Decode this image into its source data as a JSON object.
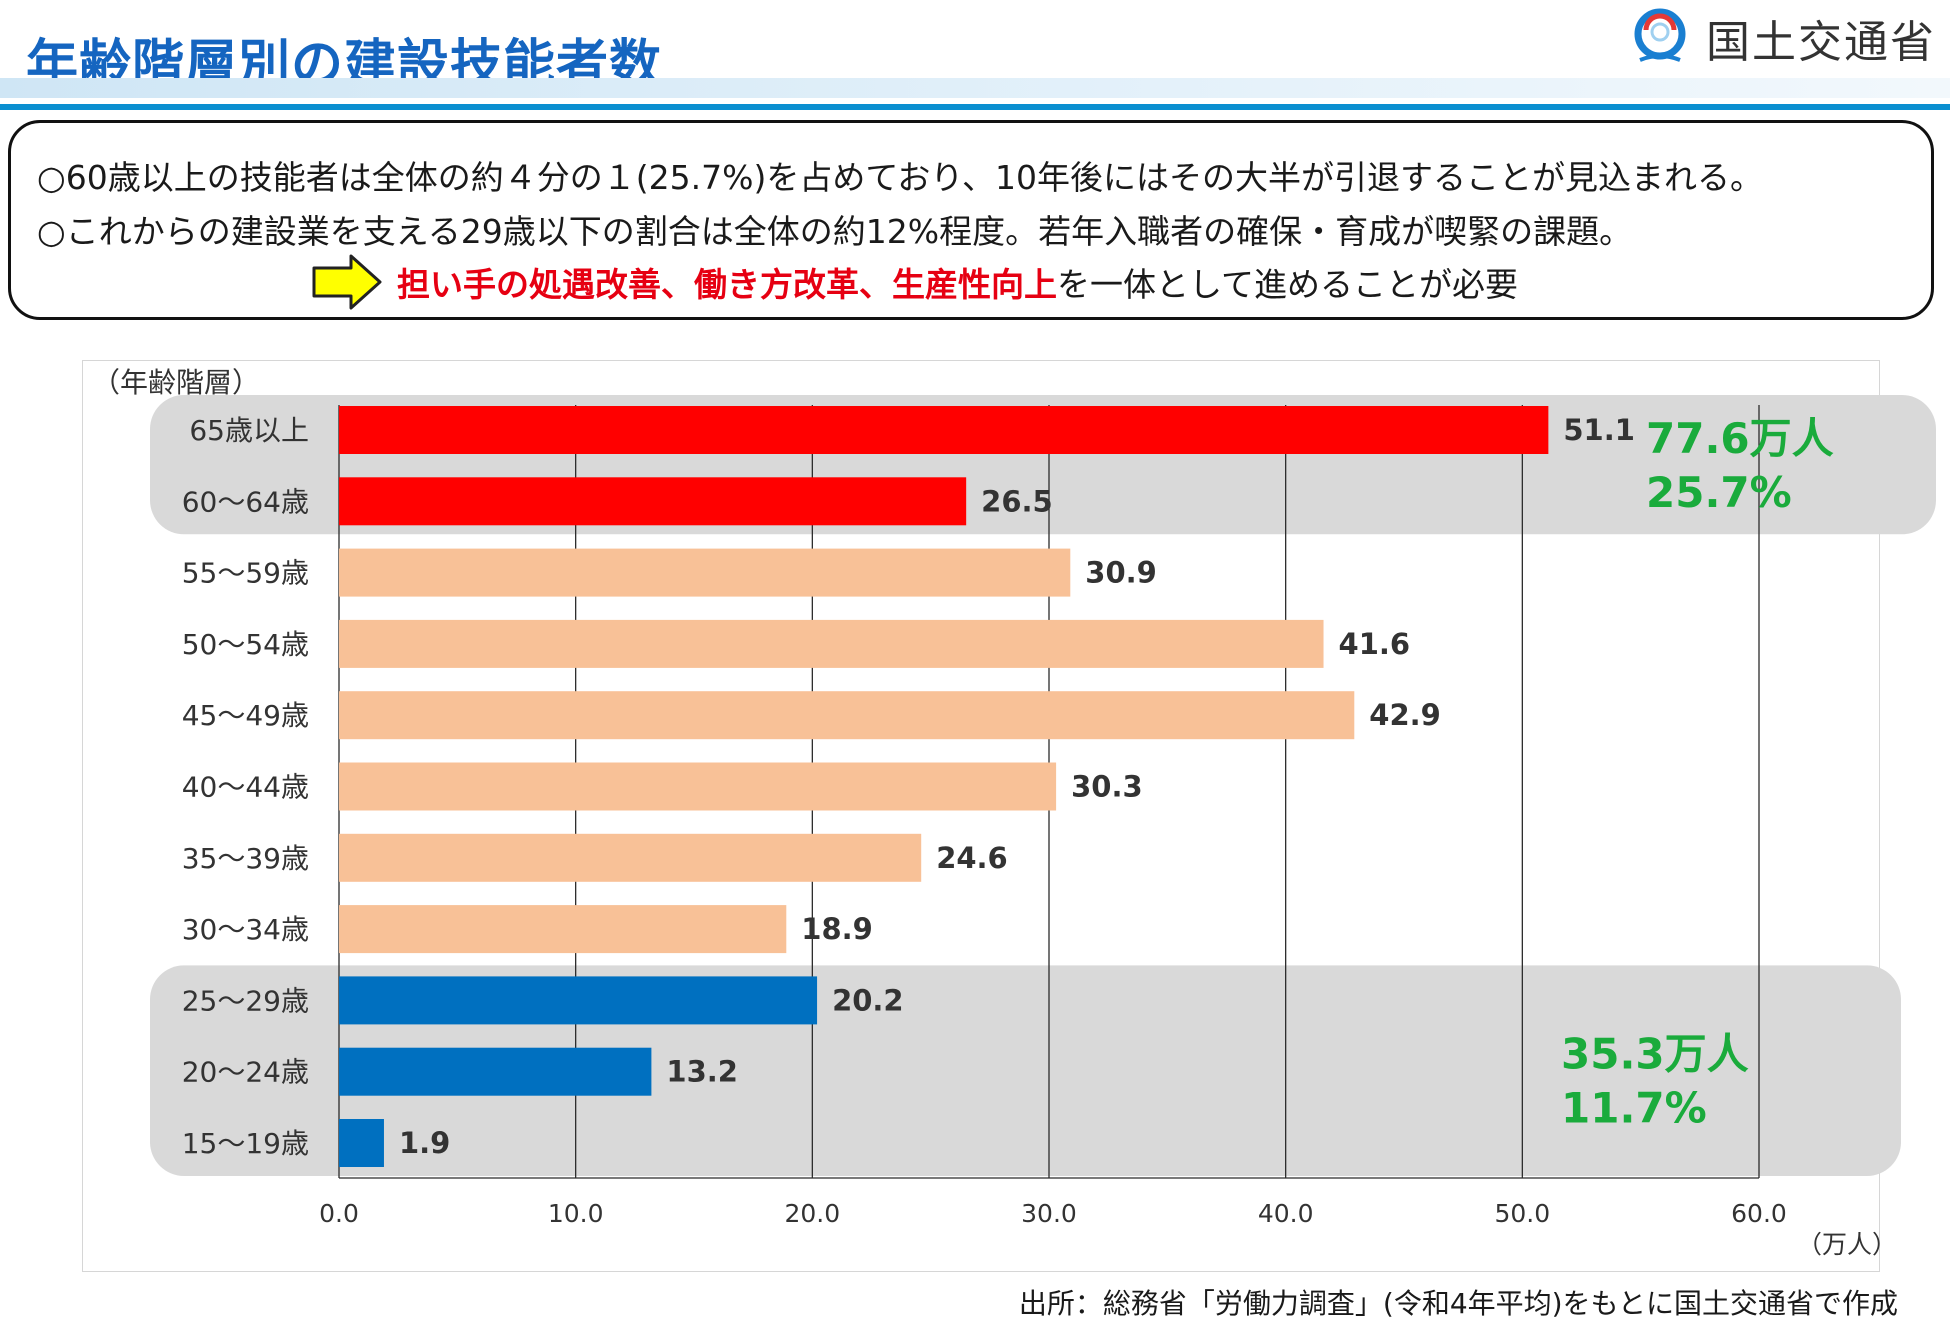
{
  "header": {
    "title": "年齢階層別の建設技能者数",
    "logo_text": "国土交通省"
  },
  "summary": {
    "line1": "○60歳以上の技能者は全体の約４分の１(25.7%)を占めており、10年後にはその大半が引退することが見込まれる。",
    "line2": "○これからの建設業を支える29歳以下の割合は全体の約12%程度。若年入職者の確保・育成が喫緊の課題。",
    "emphasis": "担い手の処遇改善、働き方改革、生産性向上",
    "line3_rest": "を一体として進めることが必要"
  },
  "source": "出所：総務省「労働力調査」(令和4年平均)をもとに国土交通省で作成",
  "colors": {
    "senior": "#ff0000",
    "middle": "#f8c197",
    "young": "#0070c0",
    "group_band": "#d9d9d9",
    "group_label": "#1aab3c",
    "title": "#1565c0"
  },
  "chart_data": {
    "type": "bar",
    "orientation": "horizontal",
    "y_axis_label": "（年齢階層）",
    "x_axis_unit": "（万人）",
    "xlim": [
      0,
      60
    ],
    "x_ticks": [
      "0.0",
      "10.0",
      "20.0",
      "30.0",
      "40.0",
      "50.0",
      "60.0"
    ],
    "grid": true,
    "categories": [
      "65歳以上",
      "60～64歳",
      "55～59歳",
      "50～54歳",
      "45～49歳",
      "40～44歳",
      "35～39歳",
      "30～34歳",
      "25～29歳",
      "20～24歳",
      "15～19歳"
    ],
    "values": [
      51.1,
      26.5,
      30.9,
      41.6,
      42.9,
      30.3,
      24.6,
      18.9,
      20.2,
      13.2,
      1.9
    ],
    "value_labels": [
      "51.1",
      "26.5",
      "30.9",
      "41.6",
      "42.9",
      "30.3",
      "24.6",
      "18.9",
      "20.2",
      "13.2",
      "1.9"
    ],
    "bar_groups": [
      "senior",
      "senior",
      "middle",
      "middle",
      "middle",
      "middle",
      "middle",
      "middle",
      "young",
      "young",
      "young"
    ],
    "groups": [
      {
        "key": "senior",
        "categories": [
          "65歳以上",
          "60～64歳"
        ],
        "total_label": "77.6万人",
        "share_label": "25.7%"
      },
      {
        "key": "young",
        "categories": [
          "25～29歳",
          "20～24歳",
          "15～19歳"
        ],
        "total_label": "35.3万人",
        "share_label": "11.7%"
      }
    ]
  }
}
